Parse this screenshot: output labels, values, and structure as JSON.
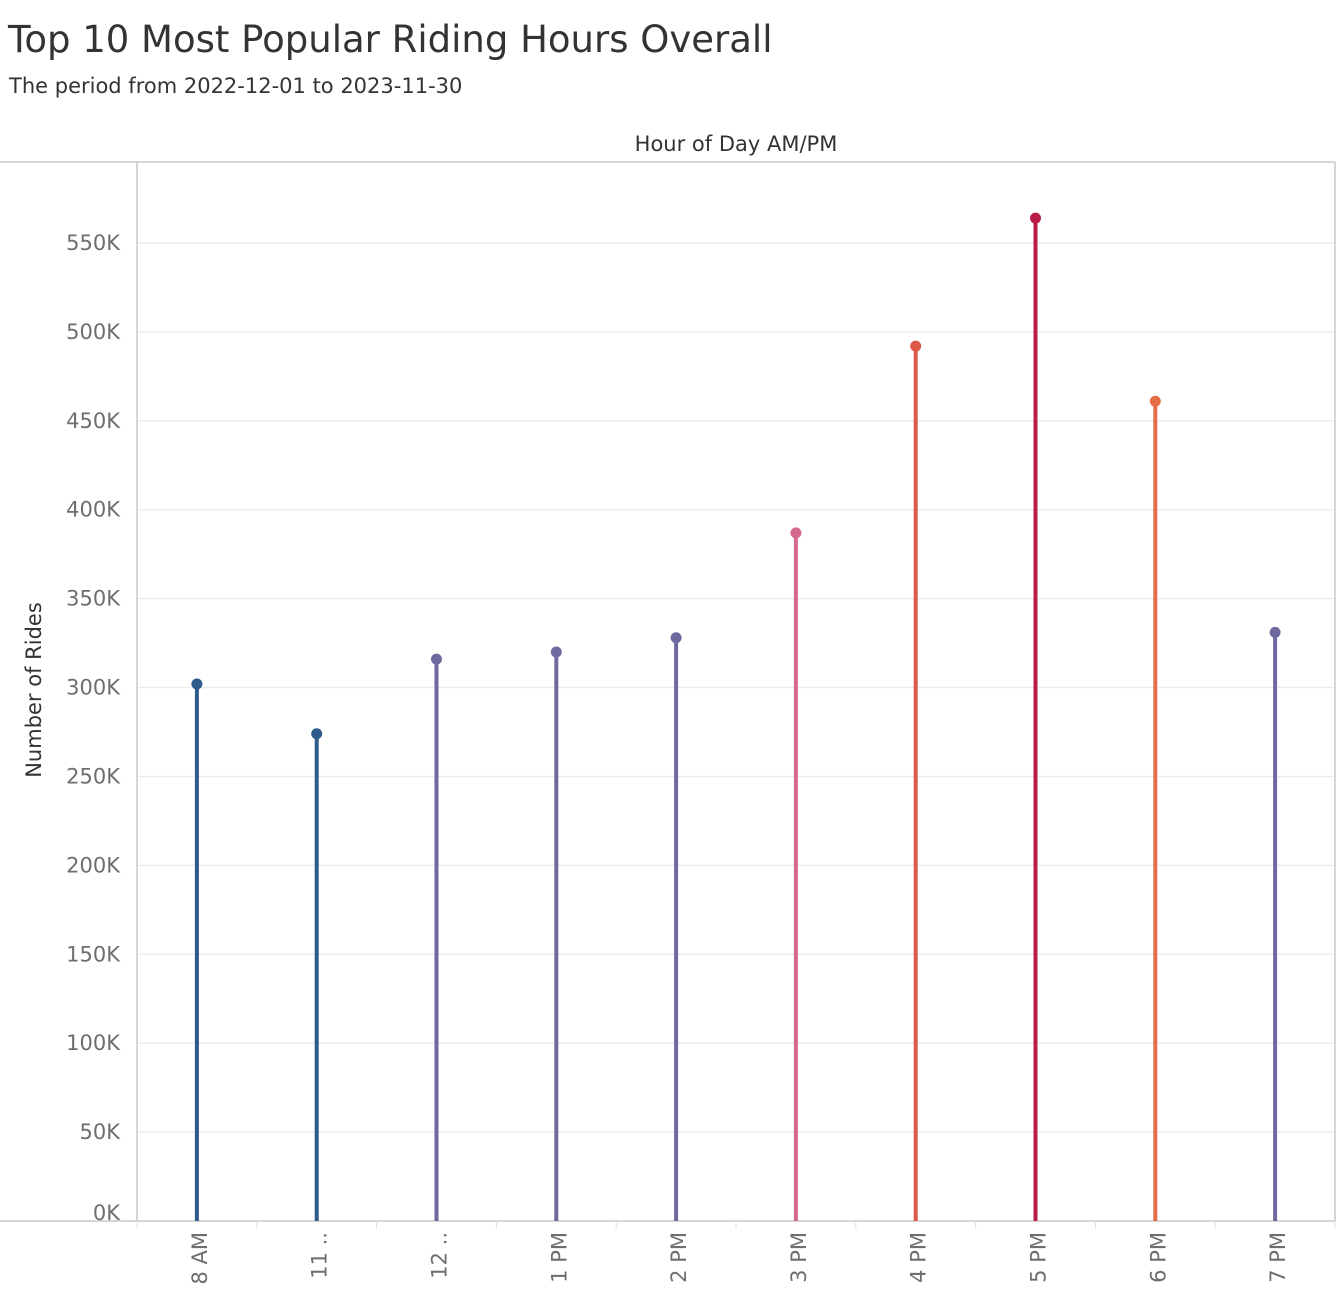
{
  "chart_data": {
    "type": "lollipop",
    "title": "Top 10 Most Popular Riding Hours Overall",
    "subtitle": "The period from 2022-12-01 to 2023-11-30",
    "xlabel": "Hour of Day AM/PM",
    "ylabel": "Number of Rides",
    "categories": [
      "8 AM",
      "11 ..",
      "12 ..",
      "1 PM",
      "2 PM",
      "3 PM",
      "4 PM",
      "5 PM",
      "6 PM",
      "7 PM"
    ],
    "values": [
      302000,
      274000,
      316000,
      320000,
      328000,
      387000,
      492000,
      564000,
      461000,
      331000
    ],
    "colors": [
      "#2e5b8a",
      "#2e5b8a",
      "#6e6aa0",
      "#6e6aa0",
      "#6e6aa0",
      "#d4698e",
      "#dd5949",
      "#b61c45",
      "#e56e47",
      "#6e6aa0"
    ],
    "y_ticks": [
      0,
      50000,
      100000,
      150000,
      200000,
      250000,
      300000,
      350000,
      400000,
      450000,
      500000,
      550000
    ],
    "y_tick_labels": [
      "0K",
      "50K",
      "100K",
      "150K",
      "200K",
      "250K",
      "300K",
      "350K",
      "400K",
      "450K",
      "500K",
      "550K"
    ],
    "ylim": [
      0,
      600000
    ],
    "grid": true
  }
}
